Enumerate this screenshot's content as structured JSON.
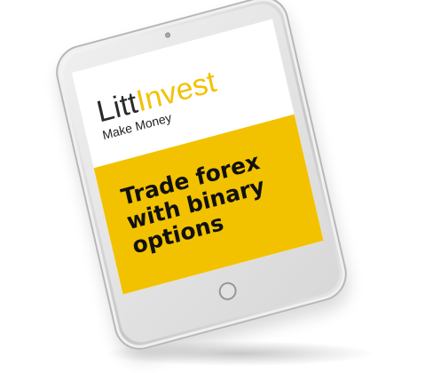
{
  "brand": {
    "part1": "Litt",
    "part2": "Invest",
    "tagline": "Make Money"
  },
  "banner": {
    "headline": "Trade forex with binary options"
  }
}
